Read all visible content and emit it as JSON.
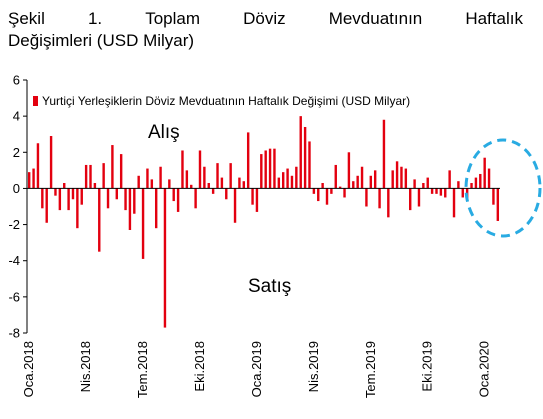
{
  "title": {
    "words_line1": [
      "Şekil",
      "1.",
      "Toplam",
      "Döviz",
      "Mevduatının",
      "Haftalık"
    ],
    "line2": "Değişimleri (USD Milyar)"
  },
  "chart_data": {
    "type": "bar",
    "legend": "Yurtiçi Yerleşiklerin Döviz Mevduatının Haftalık Değişimi (USD Milyar)",
    "legend_position": "top-left",
    "series_color": "#e3000f",
    "ylim": [
      -8,
      6
    ],
    "yticks": [
      6,
      4,
      2,
      0,
      -2,
      -4,
      -6,
      -8
    ],
    "grid": false,
    "xtick_labels": [
      "Oca.2018",
      "Nis.2018",
      "Tem.2018",
      "Eki.2018",
      "Oca.2019",
      "Nis.2019",
      "Tem.2019",
      "Eki.2019",
      "Oca.2020"
    ],
    "xtick_positions": [
      0,
      13,
      26,
      39,
      52,
      65,
      78,
      91,
      104
    ],
    "annotations": [
      "Alış",
      "Satış"
    ],
    "highlight_circle_color": "#29abe2",
    "values": [
      0.9,
      1.1,
      2.5,
      -1.1,
      -1.9,
      2.9,
      -0.4,
      -1.2,
      0.3,
      -1.2,
      -0.6,
      -2.2,
      -0.9,
      1.3,
      1.3,
      0.3,
      -3.5,
      1.4,
      -1.1,
      2.4,
      -0.6,
      1.9,
      -1.2,
      -2.3,
      -1.4,
      0.7,
      -3.9,
      1.1,
      0.5,
      -2.2,
      1.2,
      -7.7,
      0.5,
      -0.7,
      -1.3,
      2.1,
      1.0,
      0.2,
      -1.1,
      2.1,
      1.2,
      0.3,
      -0.3,
      1.4,
      0.6,
      -0.6,
      1.4,
      -1.9,
      0.6,
      0.4,
      3.1,
      -0.9,
      -1.3,
      1.9,
      2.1,
      2.2,
      2.2,
      0.6,
      0.9,
      1.1,
      0.7,
      1.2,
      4.0,
      3.4,
      2.6,
      -0.3,
      -0.7,
      0.3,
      -0.9,
      -0.3,
      1.3,
      0.1,
      -0.5,
      2.0,
      0.4,
      0.7,
      1.2,
      -1.0,
      0.7,
      1.0,
      -1.1,
      3.8,
      -1.6,
      1.0,
      1.5,
      1.2,
      1.1,
      -1.2,
      0.5,
      -1.0,
      0.3,
      0.6,
      -0.3,
      -0.3,
      -0.4,
      -0.5,
      1.0,
      -1.6,
      0.4,
      -0.5,
      -0.7,
      0.3,
      0.6,
      0.8,
      1.7,
      1.1,
      -0.9,
      -1.8
    ]
  }
}
